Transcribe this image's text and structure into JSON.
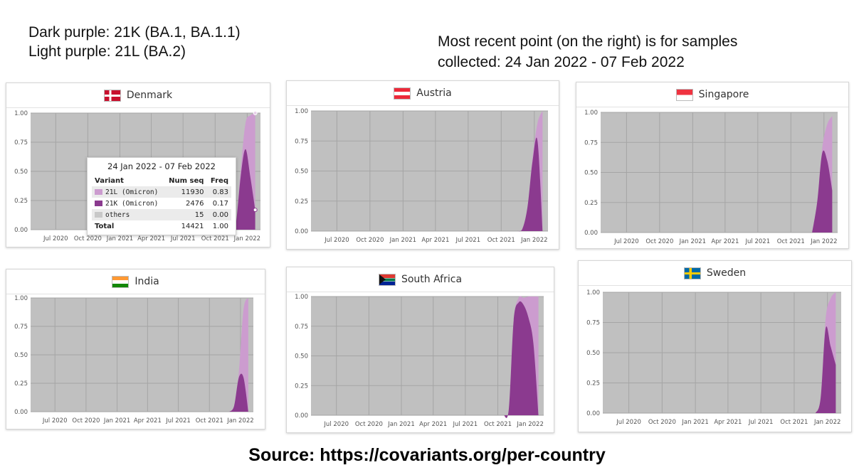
{
  "notes": {
    "legend_line1": "Dark purple: 21K (BA.1, BA.1.1)",
    "legend_line2": "Light purple: 21L (BA.2)",
    "recent_line1": "Most recent point (on the right) is for samples",
    "recent_line2": "collected: 24 Jan 2022 - 07 Feb 2022"
  },
  "source": "Source: https://covariants.org/per-country",
  "colors": {
    "plot_bg": "#c0c0c0",
    "grid": "#a5a5a5",
    "dark_purple": "#8b3a8f",
    "light_purple": "#cc9ccf",
    "others": "#c8c8c8"
  },
  "tooltip": {
    "title": "24 Jan 2022 - 07 Feb 2022",
    "headers": [
      "Variant",
      "Num seq",
      "Freq"
    ],
    "rows": [
      {
        "variant": "21L (Omicron)",
        "num_seq": "11930",
        "freq": "0.83",
        "color": "#cc9ccf"
      },
      {
        "variant": "21K (Omicron)",
        "num_seq": "2476",
        "freq": "0.17",
        "color": "#8b3a8f"
      },
      {
        "variant": "others",
        "num_seq": "15",
        "freq": "0.00",
        "color": "#c8c8c8"
      }
    ],
    "total_label": "Total",
    "total_num_seq": "14421",
    "total_freq": "1.00"
  },
  "chart_data": [
    {
      "type": "area",
      "title": "Denmark",
      "flag": "denmark",
      "x_ticks": [
        "Jul 2020",
        "Oct 2020",
        "Jan 2021",
        "Apr 2021",
        "Jul 2021",
        "Oct 2021",
        "Jan 2022"
      ],
      "y_ticks": [
        "0.00",
        "0.25",
        "0.50",
        "0.75",
        "1.00"
      ],
      "ylim": [
        0,
        1
      ],
      "x": [
        "2021-11-15",
        "2021-11-29",
        "2021-12-13",
        "2021-12-27",
        "2022-01-10",
        "2022-01-24"
      ],
      "series": [
        {
          "name": "21K (Omicron)",
          "values": [
            0.0,
            0.04,
            0.45,
            0.69,
            0.45,
            0.17
          ]
        },
        {
          "name": "21L (Omicron)",
          "values": [
            0.0,
            0.0,
            0.05,
            0.22,
            0.53,
            0.83
          ]
        }
      ]
    },
    {
      "type": "area",
      "title": "Austria",
      "flag": "austria",
      "x_ticks": [
        "Jul 2020",
        "Oct 2020",
        "Jan 2021",
        "Apr 2021",
        "Jul 2021",
        "Oct 2021",
        "Jan 2022"
      ],
      "y_ticks": [
        "0.00",
        "0.25",
        "0.50",
        "0.75",
        "1.00"
      ],
      "ylim": [
        0,
        1
      ],
      "x": [
        "2021-11-15",
        "2021-11-29",
        "2021-12-13",
        "2021-12-27",
        "2022-01-10",
        "2022-01-24"
      ],
      "series": [
        {
          "name": "21K (Omicron)",
          "values": [
            0.0,
            0.02,
            0.2,
            0.58,
            0.75,
            0.0
          ]
        },
        {
          "name": "21L (Omicron)",
          "values": [
            0.0,
            0.0,
            0.0,
            0.03,
            0.15,
            1.0
          ]
        }
      ]
    },
    {
      "type": "area",
      "title": "Singapore",
      "flag": "singapore",
      "x_ticks": [
        "Jul 2020",
        "Oct 2020",
        "Jan 2021",
        "Apr 2021",
        "Jul 2021",
        "Oct 2021",
        "Jan 2022"
      ],
      "y_ticks": [
        "0.00",
        "0.25",
        "0.50",
        "0.75",
        "1.00"
      ],
      "ylim": [
        0,
        1
      ],
      "x": [
        "2021-11-29",
        "2021-12-13",
        "2021-12-27",
        "2022-01-10",
        "2022-01-24"
      ],
      "series": [
        {
          "name": "21K (Omicron)",
          "values": [
            0.0,
            0.25,
            0.66,
            0.6,
            0.35
          ]
        },
        {
          "name": "21L (Omicron)",
          "values": [
            0.0,
            0.0,
            0.04,
            0.3,
            0.62
          ]
        }
      ]
    },
    {
      "type": "area",
      "title": "India",
      "flag": "india",
      "x_ticks": [
        "Jul 2020",
        "Oct 2020",
        "Jan 2021",
        "Apr 2021",
        "Jul 2021",
        "Oct 2021",
        "Jan 2022"
      ],
      "y_ticks": [
        "0.00",
        "0.25",
        "0.50",
        "0.75",
        "1.00"
      ],
      "ylim": [
        0,
        1
      ],
      "x": [
        "2021-11-29",
        "2021-12-13",
        "2021-12-27",
        "2022-01-10",
        "2022-01-24"
      ],
      "series": [
        {
          "name": "21K (Omicron)",
          "values": [
            0.0,
            0.05,
            0.3,
            0.3,
            0.0
          ]
        },
        {
          "name": "21L (Omicron)",
          "values": [
            0.0,
            0.0,
            0.05,
            0.6,
            1.0
          ]
        }
      ]
    },
    {
      "type": "area",
      "title": "South Africa",
      "flag": "south_africa",
      "x_ticks": [
        "Jul 2020",
        "Oct 2020",
        "Jan 2021",
        "Apr 2021",
        "Jul 2021",
        "Oct 2021",
        "Jan 2022"
      ],
      "y_ticks": [
        "0.00",
        "0.25",
        "0.50",
        "0.75",
        "1.00"
      ],
      "ylim": [
        0,
        1
      ],
      "x": [
        "2021-10-18",
        "2021-11-01",
        "2021-11-15",
        "2021-11-29",
        "2021-12-13",
        "2021-12-27",
        "2022-01-10",
        "2022-01-24"
      ],
      "series": [
        {
          "name": "21K (Omicron)",
          "values": [
            0.0,
            0.05,
            0.8,
            0.95,
            0.93,
            0.82,
            0.6,
            0.0
          ]
        },
        {
          "name": "21L (Omicron)",
          "values": [
            0.0,
            0.0,
            0.0,
            0.04,
            0.06,
            0.18,
            0.4,
            1.0
          ]
        }
      ]
    },
    {
      "type": "area",
      "title": "Sweden",
      "flag": "sweden",
      "x_ticks": [
        "Jul 2020",
        "Oct 2020",
        "Jan 2021",
        "Apr 2021",
        "Jul 2021",
        "Oct 2021",
        "Jan 2022"
      ],
      "y_ticks": [
        "0.00",
        "0.25",
        "0.50",
        "0.75",
        "1.00"
      ],
      "ylim": [
        0,
        1
      ],
      "x": [
        "2021-11-29",
        "2021-12-13",
        "2021-12-27",
        "2022-01-10",
        "2022-01-24"
      ],
      "series": [
        {
          "name": "21K (Omicron)",
          "values": [
            0.0,
            0.12,
            0.7,
            0.55,
            0.4
          ]
        },
        {
          "name": "21L (Omicron)",
          "values": [
            0.0,
            0.0,
            0.08,
            0.4,
            0.6
          ]
        }
      ]
    }
  ]
}
